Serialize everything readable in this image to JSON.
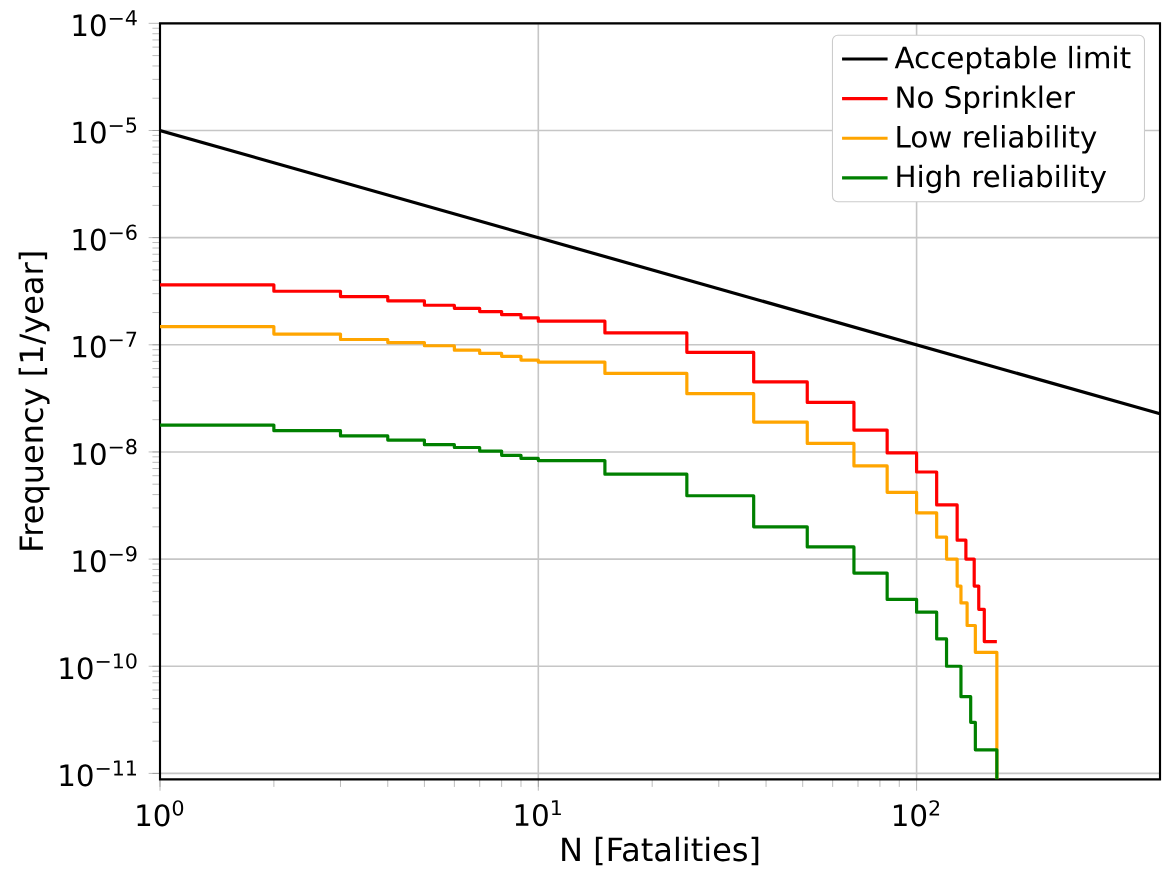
{
  "chart_data": {
    "type": "step",
    "xlabel": "N [Fatalities]",
    "ylabel": "Frequency [1/year]",
    "log": "xy",
    "grid": true,
    "legend": "top right",
    "xlim": [
      1,
      440
    ],
    "ylim": [
      8.8e-12,
      0.0001
    ],
    "xticks": [
      {
        "value": 1,
        "label": "10$^{0}$"
      },
      {
        "value": 10,
        "label": "10$^{1}$"
      },
      {
        "value": 100,
        "label": "10$^{2}$"
      }
    ],
    "yticks": [
      {
        "value": 1e-11,
        "label": "10$^{−11}$"
      },
      {
        "value": 1e-10,
        "label": "10$^{−10}$"
      },
      {
        "value": 1e-09,
        "label": "10$^{−9}$"
      },
      {
        "value": 1e-08,
        "label": "10$^{−8}$"
      },
      {
        "value": 1e-07,
        "label": "10$^{−7}$"
      },
      {
        "value": 1e-06,
        "label": "10$^{−6}$"
      },
      {
        "value": 1e-05,
        "label": "10$^{−5}$"
      },
      {
        "value": 0.0001,
        "label": "10$^{−4}$"
      }
    ],
    "series": [
      {
        "name": "Acceptable limit",
        "type": "line",
        "color": "#000000",
        "x": [
          1,
          440
        ],
        "values": [
          1e-05,
          2.27e-08
        ]
      },
      {
        "name": "No Sprinkler",
        "color": "#ff0000",
        "x": [
          1,
          2,
          3,
          4,
          5,
          6,
          7,
          8,
          9,
          10,
          15,
          24.7,
          37.1,
          51.4,
          68.3,
          83.6,
          100,
          113,
          128,
          135,
          142,
          146,
          151,
          163
        ],
        "values": [
          3.63e-07,
          3.16e-07,
          2.82e-07,
          2.57e-07,
          2.34e-07,
          2.19e-07,
          2.04e-07,
          1.91e-07,
          1.78e-07,
          1.66e-07,
          1.29e-07,
          8.5e-08,
          4.5e-08,
          2.9e-08,
          1.6e-08,
          9.8e-09,
          6.5e-09,
          3.2e-09,
          1.5e-09,
          1e-09,
          5.6e-10,
          3.4e-10,
          1.7e-10,
          1.7e-10
        ]
      },
      {
        "name": "Low reliability",
        "color": "#ffa500",
        "x": [
          1,
          2,
          3,
          4,
          5,
          6,
          7,
          8,
          9,
          10,
          15,
          24.7,
          37.1,
          51.4,
          68.3,
          83.6,
          100,
          113,
          120,
          128,
          131,
          136,
          143,
          163
        ],
        "values": [
          1.48e-07,
          1.26e-07,
          1.12e-07,
          1.05e-07,
          9.8e-08,
          8.9e-08,
          8.3e-08,
          7.8e-08,
          7.2e-08,
          6.9e-08,
          5.4e-08,
          3.5e-08,
          1.9e-08,
          1.2e-08,
          7.4e-09,
          4.2e-09,
          2.7e-09,
          1.6e-09,
          1e-09,
          5.6e-10,
          3.9e-10,
          2.4e-10,
          1.35e-10,
          8.8e-12
        ]
      },
      {
        "name": "High reliability",
        "color": "#008000",
        "x": [
          1,
          2,
          3,
          4,
          5,
          6,
          7,
          8,
          9,
          10,
          15,
          24.7,
          37.1,
          51.4,
          68.3,
          83.6,
          100,
          113,
          120,
          131,
          139,
          143,
          163
        ],
        "values": [
          1.78e-08,
          1.58e-08,
          1.41e-08,
          1.29e-08,
          1.17e-08,
          1.1e-08,
          1.02e-08,
          9.3e-09,
          8.7e-09,
          8.3e-09,
          6.2e-09,
          3.9e-09,
          2e-09,
          1.3e-09,
          7.4e-10,
          4.2e-10,
          3.2e-10,
          1.8e-10,
          1e-10,
          5.2e-11,
          3e-11,
          1.66e-11,
          8.8e-12
        ]
      }
    ]
  }
}
